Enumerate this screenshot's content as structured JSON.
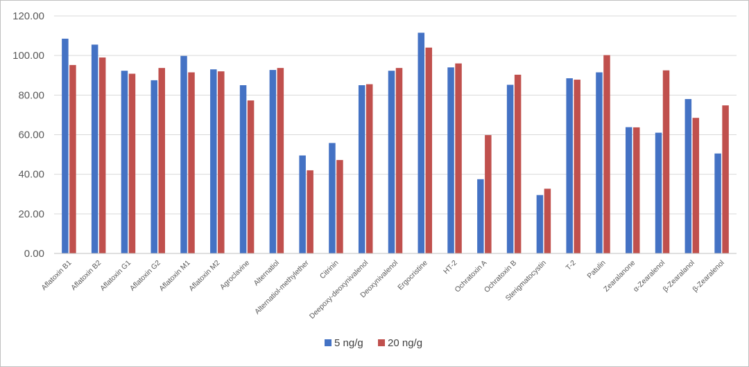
{
  "chart_data": {
    "type": "bar",
    "title": "",
    "xlabel": "",
    "ylabel": "",
    "ylim": [
      0,
      120
    ],
    "yticks": [
      0,
      20,
      40,
      60,
      80,
      100,
      120
    ],
    "ytick_labels": [
      "0.00",
      "20.00",
      "40.00",
      "60.00",
      "80.00",
      "100.00",
      "120.00"
    ],
    "grid": true,
    "legend_position": "bottom-center",
    "categories": [
      "Aflatoxin B1",
      "Aflatoxin B2",
      "Aflatoxin G1",
      "Aflatoxin G2",
      "Aflatoxin M1",
      "Aflatoxin M2",
      "Agroclavine",
      "Alternatiol",
      "Alternatiol-methylether",
      "Citrinin",
      "Deepoxy-deoxynivalenol",
      "Deoxynivalenol",
      "Ergocristine",
      "HT-2",
      "Ochratoxin A",
      "Ochratoxin B",
      "Sterigmatocystin",
      "T-2",
      "Patulin",
      "Zearalanone",
      "α-Zearalenol",
      "β-Zearalanol",
      "β-Zearalenol"
    ],
    "series": [
      {
        "name": "5 ng/g",
        "color": "#4472c4",
        "values": [
          108.5,
          105.5,
          92.3,
          87.5,
          99.8,
          93.0,
          85.0,
          92.7,
          49.5,
          55.8,
          85.0,
          92.3,
          111.5,
          94.0,
          37.5,
          85.2,
          29.5,
          88.5,
          91.5,
          63.8,
          61.0,
          78.0,
          50.5
        ]
      },
      {
        "name": "20 ng/g",
        "color": "#c0504d",
        "values": [
          95.2,
          99.0,
          90.8,
          93.7,
          91.5,
          92.0,
          77.3,
          93.7,
          42.0,
          47.2,
          85.5,
          93.7,
          104.0,
          96.0,
          59.8,
          90.3,
          32.7,
          87.8,
          100.2,
          63.7,
          92.5,
          68.5,
          74.8
        ]
      }
    ]
  },
  "colors": {
    "gridline": "#d9d9d9",
    "axis": "#bfbfbf",
    "border": "#bfbfbf"
  }
}
